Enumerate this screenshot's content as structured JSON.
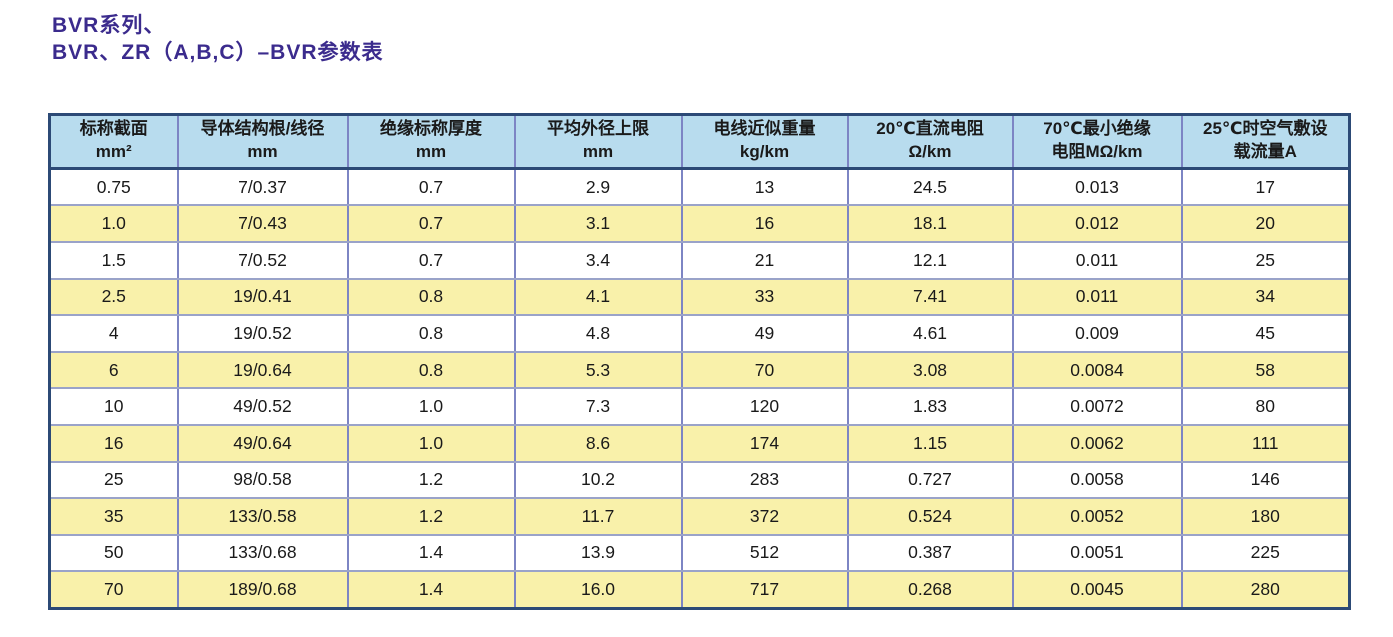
{
  "page": {
    "title_line1": "BVR系列、",
    "title_line2": "BVR、ZR（A,B,C）–BVR参数表"
  },
  "colors": {
    "title": "#3b2b8d",
    "header_bg": "#b8dcee",
    "row_alt_bg": "#f9f1aa",
    "row_bg": "#ffffff",
    "outer_border": "#2c4a76",
    "grid_vertical": "#7d85c4",
    "grid_horizontal": "#9aa3c9",
    "text": "#1a1a1a"
  },
  "table": {
    "headers": [
      {
        "line1": "标称截面",
        "line2": "mm²"
      },
      {
        "line1": "导体结构根/线径",
        "line2": "mm"
      },
      {
        "line1": "绝缘标称厚度",
        "line2": "mm"
      },
      {
        "line1": "平均外径上限",
        "line2": "mm"
      },
      {
        "line1": "电线近似重量",
        "line2": "kg/km"
      },
      {
        "line1": "20℃直流电阻",
        "line2": "Ω/km"
      },
      {
        "line1": "70℃最小绝缘",
        "line2": "电阻MΩ/km"
      },
      {
        "line1": "25℃时空气敷设",
        "line2": "载流量A"
      }
    ],
    "rows": [
      [
        "0.75",
        "7/0.37",
        "0.7",
        "2.9",
        "13",
        "24.5",
        "0.013",
        "17"
      ],
      [
        "1.0",
        "7/0.43",
        "0.7",
        "3.1",
        "16",
        "18.1",
        "0.012",
        "20"
      ],
      [
        "1.5",
        "7/0.52",
        "0.7",
        "3.4",
        "21",
        "12.1",
        "0.011",
        "25"
      ],
      [
        "2.5",
        "19/0.41",
        "0.8",
        "4.1",
        "33",
        "7.41",
        "0.011",
        "34"
      ],
      [
        "4",
        "19/0.52",
        "0.8",
        "4.8",
        "49",
        "4.61",
        "0.009",
        "45"
      ],
      [
        "6",
        "19/0.64",
        "0.8",
        "5.3",
        "70",
        "3.08",
        "0.0084",
        "58"
      ],
      [
        "10",
        "49/0.52",
        "1.0",
        "7.3",
        "120",
        "1.83",
        "0.0072",
        "80"
      ],
      [
        "16",
        "49/0.64",
        "1.0",
        "8.6",
        "174",
        "1.15",
        "0.0062",
        "111"
      ],
      [
        "25",
        "98/0.58",
        "1.2",
        "10.2",
        "283",
        "0.727",
        "0.0058",
        "146"
      ],
      [
        "35",
        "133/0.58",
        "1.2",
        "11.7",
        "372",
        "0.524",
        "0.0052",
        "180"
      ],
      [
        "50",
        "133/0.68",
        "1.4",
        "13.9",
        "512",
        "0.387",
        "0.0051",
        "225"
      ],
      [
        "70",
        "189/0.68",
        "1.4",
        "16.0",
        "717",
        "0.268",
        "0.0045",
        "280"
      ]
    ]
  }
}
